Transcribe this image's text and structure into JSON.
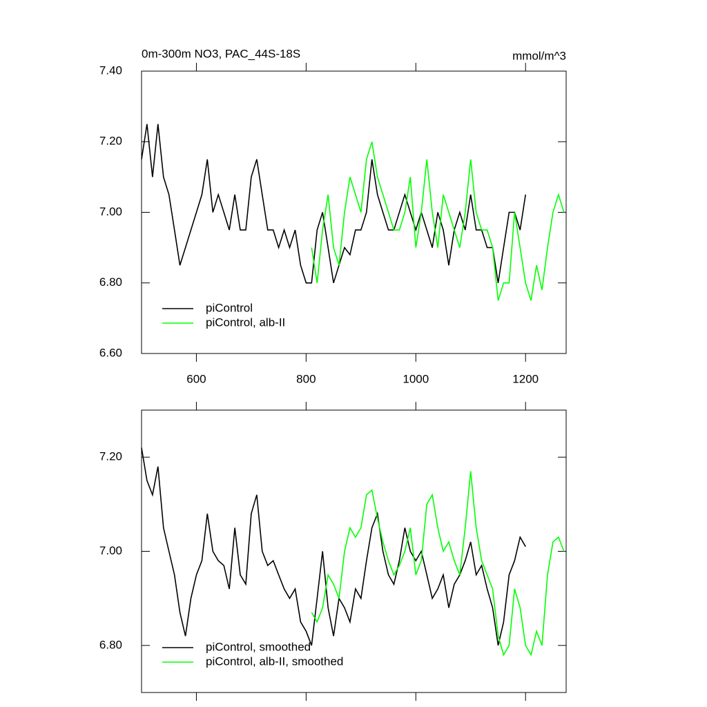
{
  "chart_data": [
    {
      "type": "line",
      "title": "0m-300m NO3, PAC_44S-18S",
      "units": "mmol/m^3",
      "xlim": [
        500,
        1274
      ],
      "xticks": [
        600,
        800,
        1000,
        1200
      ],
      "show_xtick_labels": true,
      "ylim": [
        6.6,
        7.4
      ],
      "yticks": [
        {
          "value": 6.6,
          "label": "6.60"
        },
        {
          "value": 6.8,
          "label": "6.80"
        },
        {
          "value": 7.0,
          "label": "7.00"
        },
        {
          "value": 7.2,
          "label": "7.20"
        },
        {
          "value": 7.4,
          "label": "7.40"
        }
      ],
      "legend": "lower left",
      "series": [
        {
          "name": "piControl",
          "color": "#000000",
          "x": [
            500,
            510,
            520,
            530,
            540,
            550,
            560,
            570,
            580,
            590,
            600,
            610,
            620,
            630,
            640,
            650,
            660,
            670,
            680,
            690,
            700,
            710,
            720,
            730,
            740,
            750,
            760,
            770,
            780,
            790,
            800,
            810,
            820,
            830,
            840,
            850,
            860,
            870,
            880,
            890,
            900,
            910,
            920,
            930,
            940,
            950,
            960,
            970,
            980,
            990,
            1000,
            1010,
            1020,
            1030,
            1040,
            1050,
            1060,
            1070,
            1080,
            1090,
            1100,
            1110,
            1120,
            1130,
            1140,
            1150,
            1160,
            1170,
            1180,
            1190,
            1200
          ],
          "values": [
            7.15,
            7.25,
            7.1,
            7.25,
            7.1,
            7.05,
            6.95,
            6.85,
            6.9,
            6.95,
            7.0,
            7.05,
            7.15,
            7.0,
            7.05,
            7.0,
            6.95,
            7.05,
            6.95,
            6.95,
            7.1,
            7.15,
            7.05,
            6.95,
            6.95,
            6.9,
            6.95,
            6.9,
            6.95,
            6.85,
            6.8,
            6.8,
            6.95,
            7.0,
            6.9,
            6.8,
            6.85,
            6.9,
            6.88,
            6.95,
            6.95,
            7.0,
            7.15,
            7.05,
            7.0,
            6.95,
            6.95,
            7.0,
            7.05,
            7.0,
            6.95,
            7.0,
            6.95,
            6.9,
            7.0,
            6.95,
            6.85,
            6.95,
            7.0,
            6.95,
            7.05,
            6.95,
            6.95,
            6.9,
            6.9,
            6.8,
            6.9,
            7.0,
            7.0,
            6.95,
            7.05
          ]
        },
        {
          "name": "piControl, alb-II",
          "color": "#00ff00",
          "x": [
            810,
            820,
            830,
            840,
            850,
            860,
            870,
            880,
            890,
            900,
            910,
            920,
            930,
            940,
            950,
            960,
            970,
            980,
            990,
            1000,
            1010,
            1020,
            1030,
            1040,
            1050,
            1060,
            1070,
            1080,
            1090,
            1100,
            1110,
            1120,
            1130,
            1140,
            1150,
            1160,
            1170,
            1180,
            1190,
            1200,
            1210,
            1220,
            1230,
            1240,
            1250,
            1260,
            1270
          ],
          "values": [
            6.9,
            6.8,
            6.95,
            7.05,
            6.9,
            6.85,
            7.0,
            7.1,
            7.05,
            7.0,
            7.15,
            7.2,
            7.1,
            7.05,
            7.0,
            6.95,
            6.95,
            7.0,
            7.1,
            6.9,
            7.0,
            7.15,
            7.0,
            6.9,
            7.05,
            7.0,
            6.95,
            6.9,
            7.0,
            7.15,
            7.0,
            6.95,
            6.95,
            6.9,
            6.75,
            6.8,
            6.8,
            7.0,
            6.9,
            6.8,
            6.75,
            6.85,
            6.78,
            6.9,
            7.0,
            7.05,
            7.0
          ]
        }
      ]
    },
    {
      "type": "line",
      "xlim": [
        500,
        1274
      ],
      "xticks": [
        600,
        800,
        1000,
        1200
      ],
      "show_xtick_labels": false,
      "ylim": [
        6.7,
        7.3
      ],
      "yticks": [
        {
          "value": 6.8,
          "label": "6.80"
        },
        {
          "value": 7.0,
          "label": "7.00"
        },
        {
          "value": 7.2,
          "label": "7.20"
        }
      ],
      "legend": "lower left",
      "series": [
        {
          "name": "piControl, smoothed",
          "color": "#000000",
          "x": [
            500,
            510,
            520,
            530,
            540,
            550,
            560,
            570,
            580,
            590,
            600,
            610,
            620,
            630,
            640,
            650,
            660,
            670,
            680,
            690,
            700,
            710,
            720,
            730,
            740,
            750,
            760,
            770,
            780,
            790,
            800,
            810,
            820,
            830,
            840,
            850,
            860,
            870,
            880,
            890,
            900,
            910,
            920,
            930,
            940,
            950,
            960,
            970,
            980,
            990,
            1000,
            1010,
            1020,
            1030,
            1040,
            1050,
            1060,
            1070,
            1080,
            1090,
            1100,
            1110,
            1120,
            1130,
            1140,
            1150,
            1160,
            1170,
            1180,
            1190,
            1200
          ],
          "values": [
            7.22,
            7.15,
            7.12,
            7.18,
            7.05,
            7.0,
            6.95,
            6.87,
            6.82,
            6.9,
            6.95,
            6.98,
            7.08,
            7.0,
            6.98,
            6.97,
            6.92,
            7.05,
            6.95,
            6.93,
            7.08,
            7.12,
            7.0,
            6.97,
            6.98,
            6.95,
            6.92,
            6.9,
            6.92,
            6.85,
            6.83,
            6.8,
            6.9,
            7.0,
            6.88,
            6.82,
            6.9,
            6.88,
            6.85,
            6.92,
            6.9,
            6.98,
            7.05,
            7.08,
            7.0,
            6.95,
            6.93,
            6.98,
            7.05,
            7.0,
            6.98,
            7.0,
            6.95,
            6.9,
            6.92,
            6.95,
            6.88,
            6.93,
            6.95,
            6.98,
            7.02,
            6.95,
            6.97,
            6.92,
            6.88,
            6.8,
            6.85,
            6.95,
            6.98,
            7.03,
            7.01
          ]
        },
        {
          "name": "piControl, alb-II, smoothed",
          "color": "#00ff00",
          "x": [
            810,
            820,
            830,
            840,
            850,
            860,
            870,
            880,
            890,
            900,
            910,
            920,
            930,
            940,
            950,
            960,
            970,
            980,
            990,
            1000,
            1010,
            1020,
            1030,
            1040,
            1050,
            1060,
            1070,
            1080,
            1090,
            1100,
            1110,
            1120,
            1130,
            1140,
            1150,
            1160,
            1170,
            1180,
            1190,
            1200,
            1210,
            1220,
            1230,
            1240,
            1250,
            1260,
            1270
          ],
          "values": [
            6.87,
            6.85,
            6.88,
            6.95,
            6.93,
            6.9,
            7.0,
            7.05,
            7.03,
            7.05,
            7.12,
            7.13,
            7.07,
            7.02,
            6.98,
            6.95,
            6.97,
            7.0,
            7.05,
            6.95,
            6.98,
            7.1,
            7.12,
            7.05,
            7.0,
            7.02,
            6.98,
            6.95,
            7.05,
            7.17,
            7.05,
            6.98,
            6.95,
            6.92,
            6.82,
            6.78,
            6.8,
            6.92,
            6.88,
            6.8,
            6.78,
            6.83,
            6.8,
            6.95,
            7.02,
            7.03,
            7.0
          ]
        }
      ]
    }
  ]
}
